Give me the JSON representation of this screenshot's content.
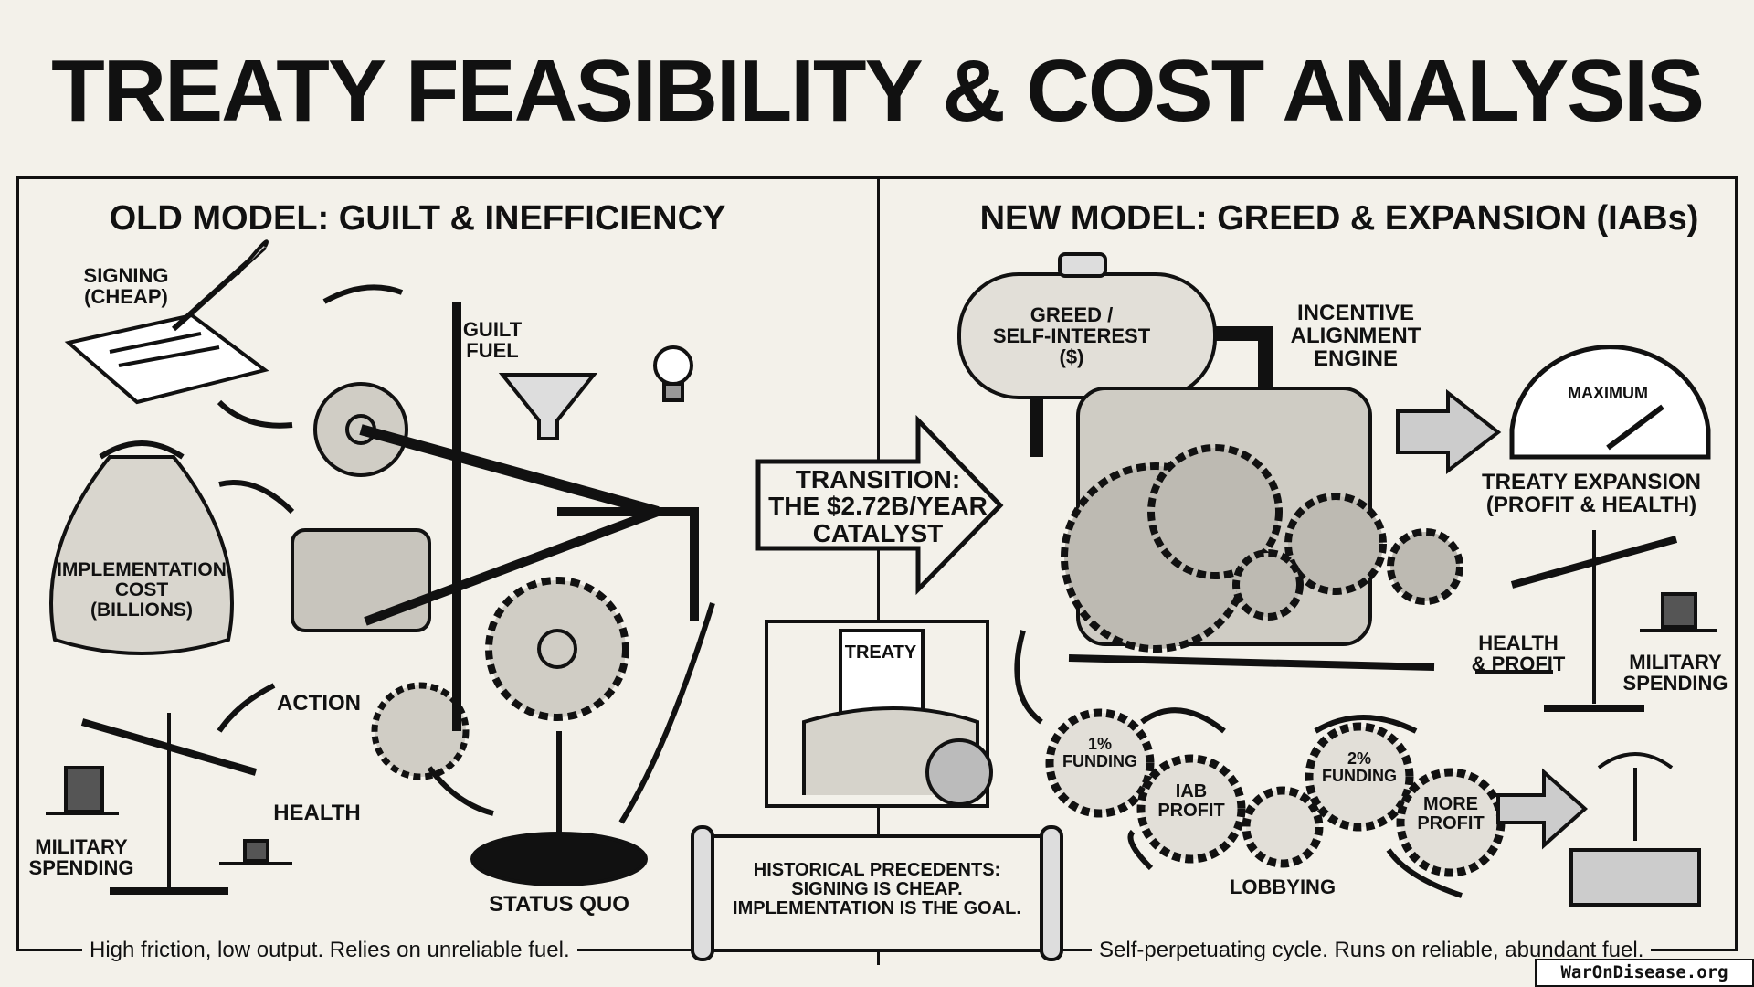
{
  "title": "TREATY FEASIBILITY & COST ANALYSIS",
  "old_model": {
    "heading": "OLD MODEL: GUILT & INEFFICIENCY",
    "labels": {
      "signing": "SIGNING\n(CHEAP)",
      "guilt_fuel": "GUILT\nFUEL",
      "implementation_cost": "IMPLEMENTATION\nCOST\n(BILLIONS)",
      "action": "ACTION",
      "health": "HEALTH",
      "military_spending": "MILITARY\nSPENDING",
      "status_quo": "STATUS QUO"
    },
    "caption": "High friction, low output. Relies on unreliable fuel."
  },
  "transition": {
    "arrow_text": "TRANSITION:\nTHE $2.72B/YEAR\nCATALYST",
    "treaty_label": "TREATY",
    "scroll_text": "HISTORICAL PRECEDENTS:\nSIGNING IS CHEAP.\nIMPLEMENTATION IS THE GOAL."
  },
  "new_model": {
    "heading": "NEW MODEL: GREED & EXPANSION (IABs)",
    "labels": {
      "tank": "GREED /\nSELF-INTEREST\n($)",
      "engine": "INCENTIVE\nALIGNMENT\nENGINE",
      "gauge": "MAXIMUM",
      "treaty_expansion": "TREATY EXPANSION\n(PROFIT & HEALTH)",
      "health_profit": "HEALTH\n& PROFIT",
      "military_spending": "MILITARY\nSPENDING"
    },
    "cycle": [
      {
        "label": "1%\nFUNDING"
      },
      {
        "label": "IAB\nPROFIT"
      },
      {
        "label": "2%\nFUNDING"
      },
      {
        "label": "MORE\nPROFIT"
      }
    ],
    "lobbying": "LOBBYING",
    "caption": "Self-perpetuating cycle. Runs on reliable, abundant fuel."
  },
  "watermark": "WarOnDisease.org",
  "colors": {
    "background": "#f3f1ea",
    "ink": "#111111",
    "shade": "#bdbab2"
  }
}
